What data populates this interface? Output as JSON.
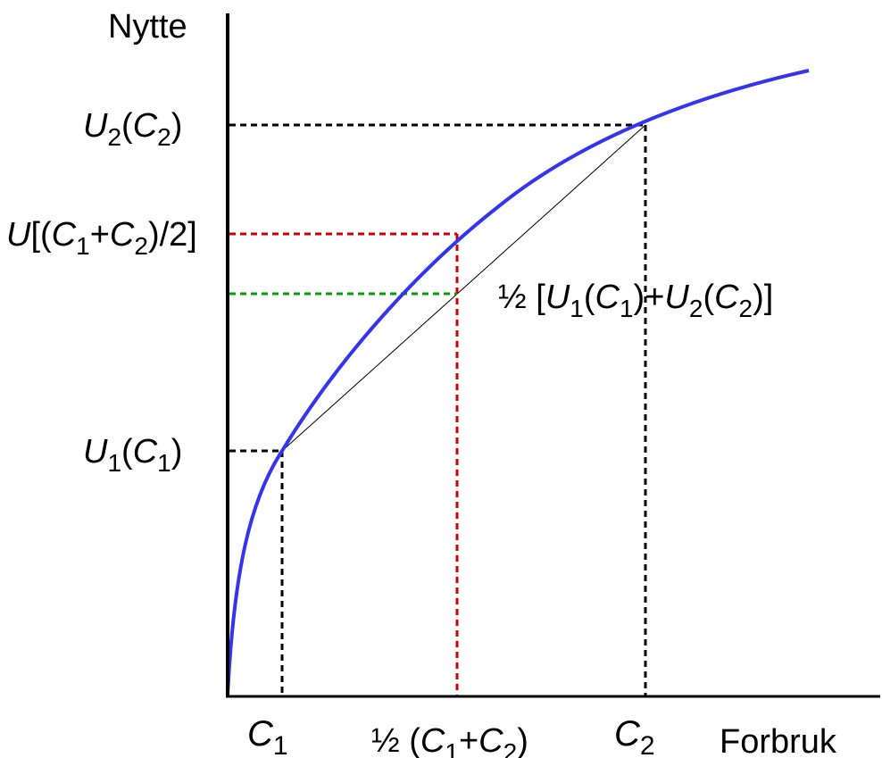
{
  "colors": {
    "curve": "#3434ee",
    "axis": "#000000",
    "chord": "#000000",
    "guide_black": "#000000",
    "guide_red": "#cc0000",
    "guide_green": "#00a000",
    "label_dark_red": "#7a0000",
    "label_green": "#00a000"
  },
  "axes": {
    "y_title": "Nytte",
    "x_title": "Forbruk"
  },
  "y_labels": {
    "u2": {
      "sym": "U",
      "sub1": "2",
      "open": "(",
      "sym2": "C",
      "sub2": "2",
      "close": ")"
    },
    "u1": {
      "sym": "U",
      "sub1": "1",
      "open": "(",
      "sym2": "C",
      "sub2": "1",
      "close": ")"
    },
    "u_mid": {
      "sym": "U",
      "part1": "[(",
      "c_a": "C",
      "sub_a": "1",
      "plus": "+",
      "c_b": "C",
      "sub_b": "2",
      "part2": ")/2]"
    }
  },
  "x_labels": {
    "c1": {
      "sym": "C",
      "sub": "1"
    },
    "c2": {
      "sym": "C",
      "sub": "2"
    },
    "mid": {
      "half": "½",
      "open": " (",
      "c_a": "C",
      "sub_a": "1",
      "plus": "+",
      "c_b": "C",
      "sub_b": "2",
      "close": ")"
    }
  },
  "avg_label": {
    "half": "½",
    "open": " [",
    "u_a": "U",
    "sub_ua": "1",
    "p1": "(",
    "c_a": "C",
    "sub_ca": "1",
    "p2": ")+",
    "u_b": "U",
    "sub_ub": "2",
    "p3": "(",
    "c_b": "C",
    "sub_cb": "2",
    "p4": ")]"
  }
}
